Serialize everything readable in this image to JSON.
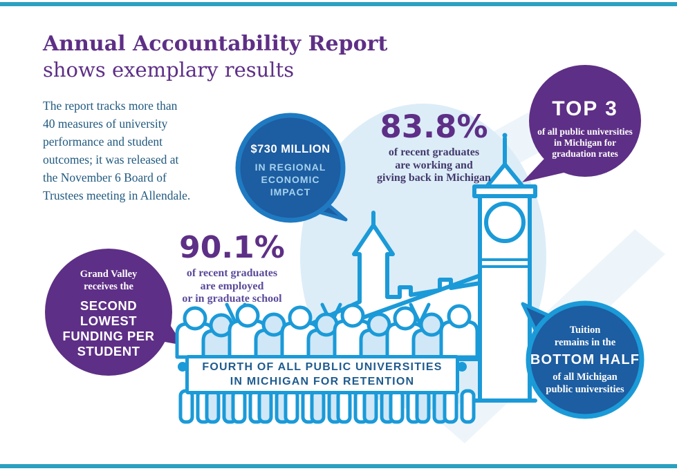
{
  "colors": {
    "purple": "#5e2f86",
    "bright_blue": "#1b9ad8",
    "bubble_blue": "#1d5da1",
    "bubble_ring_blue": "#1f7ac2",
    "light_circle_blue": "#dcedf8",
    "body_text_blue": "#20597f",
    "banner_text_blue": "#1e5b8e",
    "edge_bar_teal": "#2ba1c0"
  },
  "header": {
    "title_bold": "Annual Accountability Report",
    "title_regular": "shows exemplary results",
    "intro": "The report tracks more than\n40 measures of university\nperformance and student\noutcomes; it was released at\nthe November 6 Board of\nTrustees meeting in Allendale."
  },
  "stats": {
    "working": {
      "value": "83.8%",
      "caption": "of recent graduates\nare working and\ngiving back in Michigan"
    },
    "employed": {
      "value": "90.1%",
      "caption": "of recent graduates\nare employed\nor in graduate school"
    }
  },
  "bubbles": {
    "economic": {
      "headline": "$730 MILLION",
      "caption": "IN REGIONAL\nECONOMIC\nIMPACT"
    },
    "top3": {
      "headline": "TOP 3",
      "caption": "of all public universities\nin Michigan for\ngraduation rates"
    },
    "funding": {
      "intro": "Grand Valley\nreceives the",
      "headline": "SECOND\nLOWEST\nFUNDING PER\nSTUDENT"
    },
    "tuition": {
      "intro": "Tuition\nremains in the",
      "headline": "BOTTOM HALF",
      "caption": "of all Michigan\npublic universities"
    }
  },
  "banner": {
    "text": "FOURTH OF ALL PUBLIC UNIVERSITIES\nIN MICHIGAN FOR RETENTION"
  },
  "illustrations": {
    "clock_tower": "clock-tower",
    "crowd": "crowd-of-people"
  }
}
